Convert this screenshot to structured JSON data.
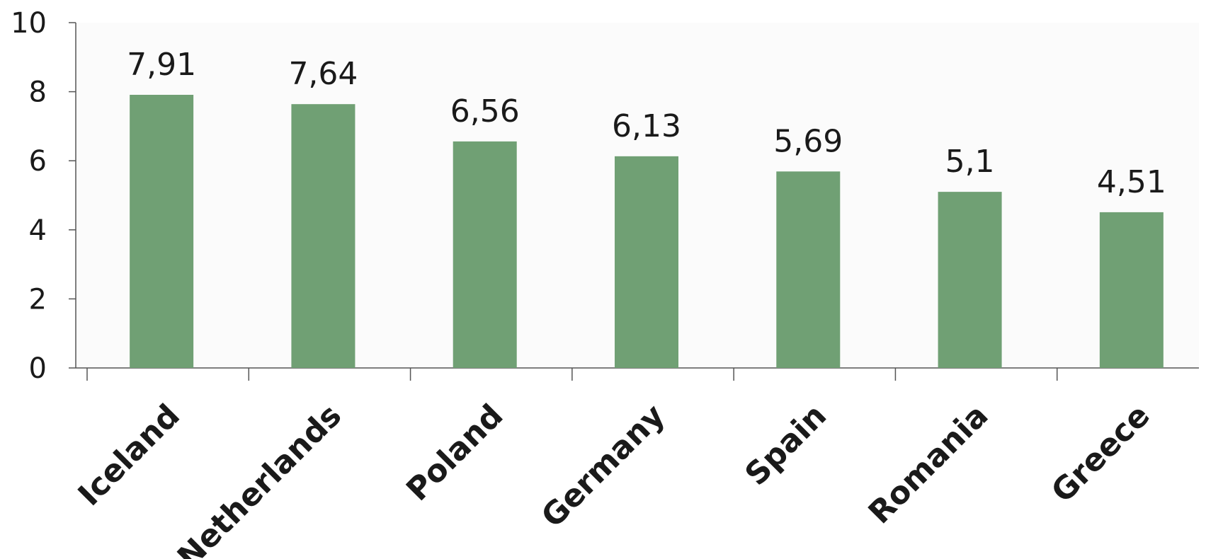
{
  "chart_data": {
    "type": "bar",
    "categories": [
      "Iceland",
      "Netherlands",
      "Poland",
      "Germany",
      "Spain",
      "Romania",
      "Greece"
    ],
    "values": [
      7.91,
      7.64,
      6.56,
      6.13,
      5.69,
      5.1,
      4.51
    ],
    "data_labels": [
      "7,91",
      "7,64",
      "6,56",
      "6,13",
      "5,69",
      "5,1",
      "4,51"
    ],
    "title": "",
    "xlabel": "",
    "ylabel": "",
    "ylim": [
      0,
      10
    ],
    "yticks": [
      0,
      2,
      4,
      6,
      8,
      10
    ],
    "ytick_labels": [
      "0",
      "2",
      "4",
      "6",
      "8",
      "10"
    ],
    "grid": false,
    "legend": "none",
    "colors": {
      "bar": "#70a074",
      "axis": "#555555",
      "text": "#1a1a1a",
      "plot_background": "#fbfbfb"
    }
  }
}
